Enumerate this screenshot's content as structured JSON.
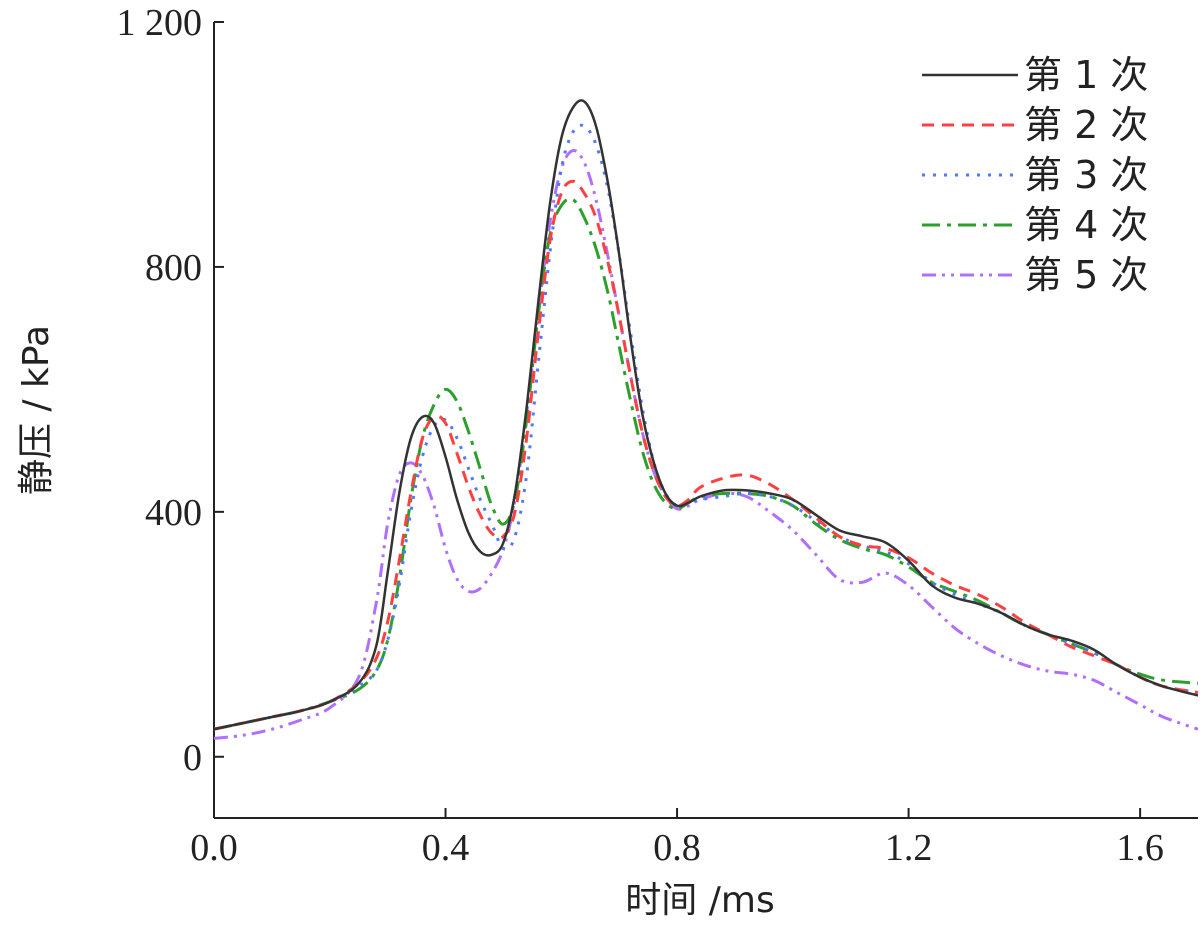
{
  "chart_data": {
    "type": "line",
    "xlabel": "时间 /ms",
    "ylabel": "静压 / kPa",
    "xlim": [
      0.0,
      1.7
    ],
    "ylim": [
      -100,
      1200
    ],
    "xticks": [
      0.0,
      0.4,
      0.8,
      1.2,
      1.6
    ],
    "xtick_labels": [
      "0.0",
      "0.4",
      "0.8",
      "1.2",
      "1.6"
    ],
    "yticks": [
      0,
      400,
      800,
      1200
    ],
    "ytick_labels": [
      "0",
      "400",
      "800",
      "1 200"
    ],
    "grid": false,
    "legend_position": "top-right",
    "series": [
      {
        "name": "第 1 次",
        "color": "#333333",
        "dash": "solid",
        "x": [
          0.0,
          0.05,
          0.1,
          0.15,
          0.2,
          0.25,
          0.28,
          0.3,
          0.32,
          0.34,
          0.36,
          0.38,
          0.4,
          0.42,
          0.44,
          0.46,
          0.48,
          0.5,
          0.52,
          0.54,
          0.56,
          0.58,
          0.6,
          0.62,
          0.64,
          0.66,
          0.68,
          0.7,
          0.72,
          0.74,
          0.76,
          0.78,
          0.8,
          0.82,
          0.84,
          0.88,
          0.92,
          0.96,
          1.0,
          1.04,
          1.08,
          1.12,
          1.16,
          1.2,
          1.24,
          1.28,
          1.32,
          1.36,
          1.4,
          1.44,
          1.48,
          1.52,
          1.56,
          1.6,
          1.64,
          1.7
        ],
        "y": [
          45,
          55,
          65,
          75,
          90,
          120,
          180,
          300,
          430,
          520,
          555,
          545,
          490,
          420,
          365,
          335,
          330,
          350,
          430,
          570,
          740,
          900,
          1010,
          1060,
          1070,
          1030,
          940,
          820,
          680,
          560,
          480,
          430,
          410,
          415,
          425,
          435,
          435,
          430,
          420,
          395,
          370,
          360,
          350,
          320,
          280,
          260,
          250,
          235,
          215,
          200,
          190,
          175,
          150,
          130,
          115,
          100
        ]
      },
      {
        "name": "第 2 次",
        "color": "#ff4040",
        "dash": "12,8",
        "x": [
          0.0,
          0.05,
          0.1,
          0.15,
          0.2,
          0.25,
          0.28,
          0.3,
          0.32,
          0.34,
          0.36,
          0.38,
          0.4,
          0.42,
          0.44,
          0.46,
          0.48,
          0.5,
          0.52,
          0.54,
          0.56,
          0.58,
          0.6,
          0.62,
          0.64,
          0.66,
          0.68,
          0.7,
          0.72,
          0.74,
          0.76,
          0.78,
          0.8,
          0.82,
          0.84,
          0.88,
          0.92,
          0.96,
          1.0,
          1.04,
          1.08,
          1.12,
          1.16,
          1.2,
          1.24,
          1.28,
          1.32,
          1.36,
          1.4,
          1.44,
          1.48,
          1.52,
          1.56,
          1.6,
          1.64,
          1.7
        ],
        "y": [
          45,
          55,
          65,
          75,
          90,
          120,
          160,
          220,
          320,
          430,
          520,
          555,
          545,
          495,
          440,
          395,
          365,
          360,
          400,
          520,
          690,
          840,
          920,
          940,
          920,
          880,
          810,
          720,
          620,
          530,
          465,
          425,
          410,
          420,
          440,
          455,
          460,
          445,
          420,
          390,
          360,
          345,
          340,
          325,
          300,
          280,
          265,
          245,
          220,
          200,
          180,
          165,
          150,
          130,
          115,
          105
        ]
      },
      {
        "name": "第 3 次",
        "color": "#4d79ff",
        "dash": "3,8",
        "x": [
          0.0,
          0.05,
          0.1,
          0.15,
          0.2,
          0.25,
          0.28,
          0.3,
          0.32,
          0.34,
          0.36,
          0.38,
          0.4,
          0.42,
          0.44,
          0.46,
          0.48,
          0.5,
          0.52,
          0.54,
          0.56,
          0.58,
          0.6,
          0.62,
          0.64,
          0.66,
          0.68,
          0.7,
          0.72,
          0.74,
          0.76,
          0.78,
          0.8,
          0.82,
          0.84,
          0.88,
          0.92,
          0.96,
          1.0,
          1.04,
          1.08,
          1.12,
          1.16,
          1.2,
          1.24,
          1.28,
          1.32,
          1.36,
          1.4,
          1.44,
          1.48,
          1.52,
          1.56,
          1.6,
          1.64,
          1.7
        ],
        "y": [
          45,
          55,
          65,
          75,
          90,
          115,
          140,
          190,
          280,
          400,
          490,
          540,
          550,
          520,
          470,
          420,
          380,
          340,
          360,
          460,
          640,
          820,
          960,
          1020,
          1030,
          1000,
          930,
          820,
          690,
          570,
          480,
          430,
          410,
          415,
          420,
          425,
          430,
          425,
          410,
          385,
          360,
          345,
          335,
          315,
          285,
          265,
          250,
          235,
          215,
          200,
          185,
          170,
          150,
          130,
          115,
          105
        ]
      },
      {
        "name": "第 4 次",
        "color": "#2ca02c",
        "dash": "18,7,4,7",
        "x": [
          0.0,
          0.05,
          0.1,
          0.15,
          0.2,
          0.25,
          0.28,
          0.3,
          0.32,
          0.34,
          0.36,
          0.38,
          0.4,
          0.42,
          0.44,
          0.46,
          0.48,
          0.5,
          0.52,
          0.54,
          0.56,
          0.58,
          0.6,
          0.62,
          0.64,
          0.66,
          0.68,
          0.7,
          0.72,
          0.74,
          0.76,
          0.78,
          0.8,
          0.82,
          0.84,
          0.88,
          0.92,
          0.96,
          1.0,
          1.04,
          1.08,
          1.12,
          1.16,
          1.2,
          1.24,
          1.28,
          1.32,
          1.36,
          1.4,
          1.44,
          1.48,
          1.52,
          1.56,
          1.6,
          1.64,
          1.7
        ],
        "y": [
          45,
          55,
          65,
          75,
          90,
          110,
          140,
          190,
          290,
          420,
          520,
          575,
          600,
          580,
          530,
          470,
          410,
          380,
          420,
          550,
          720,
          850,
          900,
          910,
          880,
          830,
          760,
          670,
          580,
          500,
          445,
          415,
          405,
          415,
          425,
          430,
          430,
          425,
          410,
          380,
          355,
          340,
          330,
          310,
          285,
          270,
          255,
          235,
          215,
          200,
          185,
          170,
          150,
          135,
          125,
          120
        ]
      },
      {
        "name": "第 5 次",
        "color": "#b070ff",
        "dash": "14,6,3,6,3,6",
        "x": [
          0.0,
          0.05,
          0.1,
          0.15,
          0.2,
          0.25,
          0.28,
          0.3,
          0.32,
          0.34,
          0.36,
          0.38,
          0.4,
          0.42,
          0.44,
          0.46,
          0.48,
          0.5,
          0.52,
          0.54,
          0.56,
          0.58,
          0.6,
          0.62,
          0.64,
          0.66,
          0.68,
          0.7,
          0.72,
          0.74,
          0.76,
          0.78,
          0.8,
          0.82,
          0.84,
          0.88,
          0.92,
          0.96,
          1.0,
          1.04,
          1.08,
          1.12,
          1.16,
          1.2,
          1.24,
          1.28,
          1.32,
          1.36,
          1.4,
          1.44,
          1.48,
          1.52,
          1.56,
          1.6,
          1.64,
          1.7
        ],
        "y": [
          30,
          35,
          45,
          60,
          80,
          130,
          250,
          380,
          460,
          480,
          460,
          410,
          340,
          290,
          270,
          275,
          300,
          340,
          420,
          560,
          720,
          870,
          960,
          990,
          970,
          910,
          820,
          720,
          620,
          530,
          465,
          425,
          405,
          410,
          420,
          430,
          425,
          400,
          370,
          330,
          290,
          285,
          300,
          280,
          245,
          210,
          185,
          165,
          150,
          140,
          135,
          125,
          105,
          85,
          65,
          45
        ]
      }
    ]
  }
}
